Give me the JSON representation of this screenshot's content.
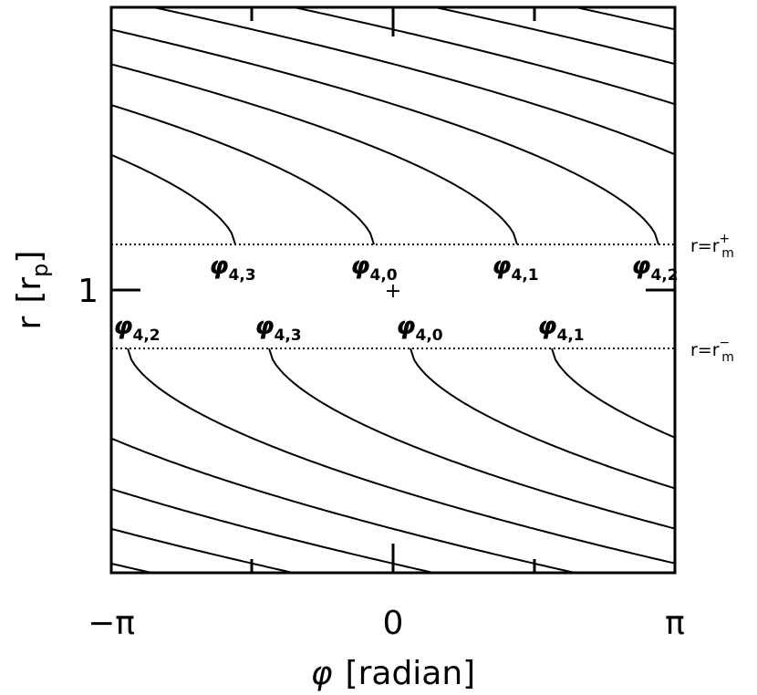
{
  "x_axis": {
    "title": "φ",
    "unit": "[radian]",
    "ticks": [
      "−π",
      "0",
      "π"
    ]
  },
  "y_axis": {
    "title": "r",
    "unit_open": "[r",
    "unit_sub": "p",
    "unit_close": "]",
    "ticks": [
      "1"
    ]
  },
  "boundaries": [
    {
      "label": "r=r",
      "sub": "m",
      "sup": "+"
    },
    {
      "label": "r=r",
      "sub": "m",
      "sup": "−"
    }
  ],
  "center_marker": "+",
  "upper_labels": [
    {
      "symbol": "φ",
      "sub": "4,3"
    },
    {
      "symbol": "φ",
      "sub": "4,0"
    },
    {
      "symbol": "φ",
      "sub": "4,1"
    },
    {
      "symbol": "φ",
      "sub": "4,2"
    }
  ],
  "lower_labels": [
    {
      "symbol": "φ",
      "sub": "4,2"
    },
    {
      "symbol": "φ",
      "sub": "4,3"
    },
    {
      "symbol": "φ",
      "sub": "4,0"
    },
    {
      "symbol": "φ",
      "sub": "4,1"
    }
  ]
}
